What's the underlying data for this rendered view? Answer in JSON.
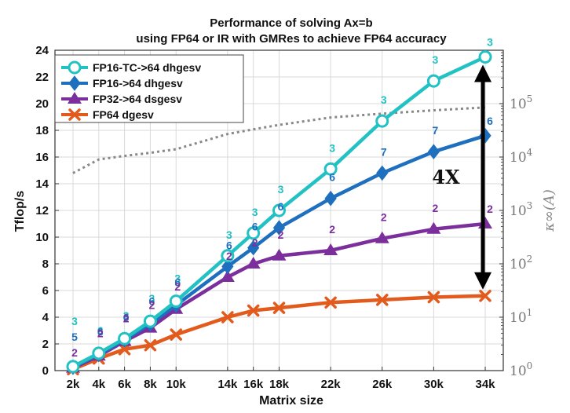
{
  "chart_data": {
    "type": "line",
    "title": "Performance of solving Ax=b",
    "subtitle": "using FP64 or IR with GMRes to achieve FP64 accuracy",
    "xlabel": "Matrix size",
    "ylabel": "Tflop/s",
    "right_ylabel": "κ∞(A)",
    "categories": [
      "2k",
      "4k",
      "6k",
      "8k",
      "10k",
      "14k",
      "16k",
      "18k",
      "22k",
      "26k",
      "30k",
      "34k"
    ],
    "x": [
      2,
      4,
      6,
      8,
      10,
      14,
      16,
      18,
      22,
      26,
      30,
      34
    ],
    "ylim": [
      0,
      24
    ],
    "yticks": [
      0,
      2,
      4,
      6,
      8,
      10,
      12,
      14,
      16,
      18,
      20,
      22,
      24
    ],
    "right_axis": {
      "scale": "log",
      "ylim": [
        1,
        1000000
      ],
      "tick_base": "10",
      "tick_exponents": [
        "0",
        "1",
        "2",
        "3",
        "4",
        "5"
      ]
    },
    "grid": true,
    "legend_position": "top-left",
    "series": [
      {
        "name": "FP16-TC->64 dhgesv",
        "color": "#22c1c3",
        "marker": "circle",
        "values": [
          0.3,
          1.3,
          2.4,
          3.7,
          5.2,
          8.6,
          10.3,
          12.0,
          15.1,
          18.7,
          21.7,
          23.5
        ],
        "labels": [
          "3",
          "6",
          "3",
          "3",
          "3",
          "3",
          "3",
          "3",
          "3",
          "3",
          "3",
          "3"
        ]
      },
      {
        "name": "FP16->64 dhgesv",
        "color": "#1f6fbf",
        "marker": "diamond",
        "values": [
          0.25,
          1.2,
          2.3,
          3.5,
          4.9,
          7.8,
          9.2,
          10.7,
          12.9,
          14.8,
          16.4,
          17.6
        ],
        "labels": [
          "5",
          "6",
          "6",
          "6",
          "6",
          "6",
          "6",
          "6",
          "6",
          "7",
          "7",
          "6"
        ]
      },
      {
        "name": "FP32->64 dsgesv",
        "color": "#7b2e9c",
        "marker": "triangle",
        "values": [
          0.2,
          1.1,
          2.2,
          3.2,
          4.6,
          7.0,
          8.0,
          8.6,
          9.0,
          9.9,
          10.6,
          11.0
        ],
        "labels": [
          "2",
          "2",
          "2",
          "2",
          "2",
          "2",
          "2",
          "2",
          "2",
          "2",
          "2",
          "2"
        ]
      },
      {
        "name": "FP64 dgesv",
        "color": "#e25a1c",
        "marker": "x",
        "values": [
          0.1,
          0.9,
          1.6,
          1.9,
          2.7,
          4.0,
          4.5,
          4.7,
          5.1,
          5.3,
          5.5,
          5.6
        ],
        "labels": []
      }
    ],
    "condition_number": {
      "color": "#888888",
      "style": "dotted",
      "x": [
        2,
        4,
        6,
        8,
        10,
        14,
        16,
        18,
        22,
        26,
        30,
        34
      ],
      "values": [
        5000,
        9000,
        10500,
        12000,
        14000,
        27000,
        33000,
        40000,
        55000,
        65000,
        75000,
        85000
      ]
    },
    "annotation": {
      "text": "4X",
      "arrow_from": 5.6,
      "arrow_to": 23.5,
      "at_x": 34
    }
  }
}
